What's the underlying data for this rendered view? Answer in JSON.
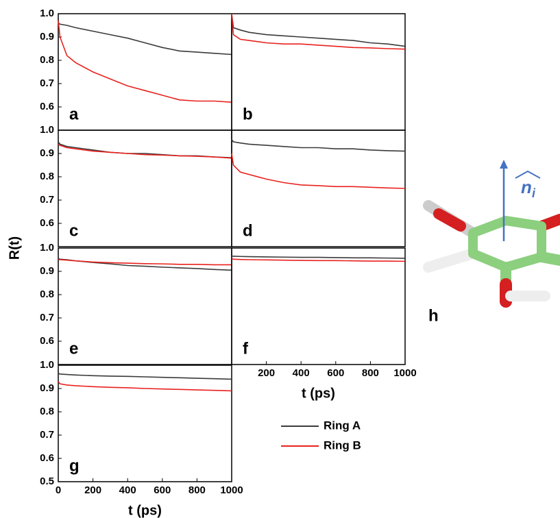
{
  "figure": {
    "ylabel": "R(t)"
  },
  "chart_data": [
    {
      "type": "line",
      "label": "a",
      "xlim": [
        0,
        1000
      ],
      "ylim": [
        0.5,
        1.0
      ],
      "yticks": [
        0.6,
        0.7,
        0.8,
        0.9,
        {
          "value": 1.0,
          "label": "1.0"
        }
      ],
      "x": [
        0,
        10,
        50,
        100,
        200,
        300,
        400,
        500,
        600,
        700,
        800,
        900,
        1000
      ],
      "series": [
        {
          "name": "Ring A",
          "color": "#3a3a3a",
          "values": [
            0.96,
            0.955,
            0.95,
            0.94,
            0.925,
            0.91,
            0.895,
            0.875,
            0.855,
            0.84,
            0.835,
            0.83,
            0.825
          ]
        },
        {
          "name": "Ring B",
          "color": "#e8211d",
          "values": [
            0.97,
            0.9,
            0.82,
            0.79,
            0.75,
            0.72,
            0.69,
            0.67,
            0.65,
            0.63,
            0.625,
            0.625,
            0.62
          ]
        }
      ]
    },
    {
      "type": "line",
      "label": "b",
      "xlim": [
        0,
        1000
      ],
      "ylim": [
        0.5,
        1.0
      ],
      "x": [
        0,
        10,
        50,
        100,
        200,
        300,
        400,
        500,
        600,
        700,
        800,
        900,
        1000
      ],
      "series": [
        {
          "name": "Ring A",
          "color": "#3a3a3a",
          "values": [
            1.0,
            0.94,
            0.93,
            0.92,
            0.91,
            0.905,
            0.9,
            0.895,
            0.89,
            0.885,
            0.875,
            0.87,
            0.86
          ]
        },
        {
          "name": "Ring B",
          "color": "#e8211d",
          "values": [
            1.0,
            0.91,
            0.89,
            0.885,
            0.875,
            0.87,
            0.87,
            0.865,
            0.86,
            0.855,
            0.853,
            0.85,
            0.848
          ]
        }
      ]
    },
    {
      "type": "line",
      "label": "c",
      "xlim": [
        0,
        1000
      ],
      "ylim": [
        0.5,
        1.0
      ],
      "yticks": [
        0.6,
        0.7,
        0.8,
        0.9,
        {
          "value": 1.0,
          "label": "1.0"
        }
      ],
      "x": [
        0,
        10,
        50,
        100,
        200,
        300,
        400,
        500,
        600,
        700,
        800,
        900,
        1000
      ],
      "series": [
        {
          "name": "Ring A",
          "color": "#3a3a3a",
          "values": [
            0.95,
            0.94,
            0.93,
            0.925,
            0.915,
            0.905,
            0.9,
            0.9,
            0.895,
            0.89,
            0.89,
            0.885,
            0.882
          ]
        },
        {
          "name": "Ring B",
          "color": "#e8211d",
          "values": [
            0.94,
            0.935,
            0.925,
            0.92,
            0.91,
            0.905,
            0.9,
            0.895,
            0.893,
            0.89,
            0.888,
            0.885,
            0.88
          ]
        }
      ]
    },
    {
      "type": "line",
      "label": "d",
      "xlim": [
        0,
        1000
      ],
      "ylim": [
        0.5,
        1.0
      ],
      "x": [
        0,
        10,
        50,
        100,
        200,
        300,
        400,
        500,
        600,
        700,
        800,
        900,
        1000
      ],
      "series": [
        {
          "name": "Ring A",
          "color": "#3a3a3a",
          "values": [
            0.96,
            0.95,
            0.945,
            0.94,
            0.935,
            0.93,
            0.925,
            0.925,
            0.92,
            0.92,
            0.915,
            0.912,
            0.91
          ]
        },
        {
          "name": "Ring B",
          "color": "#e8211d",
          "values": [
            0.9,
            0.85,
            0.82,
            0.81,
            0.79,
            0.775,
            0.765,
            0.762,
            0.758,
            0.758,
            0.755,
            0.752,
            0.75
          ]
        }
      ]
    },
    {
      "type": "line",
      "label": "e",
      "xlim": [
        0,
        1000
      ],
      "ylim": [
        0.5,
        1.0
      ],
      "yticks": [
        0.6,
        0.7,
        0.8,
        0.9,
        {
          "value": 1.0,
          "label": "1.0"
        }
      ],
      "x": [
        0,
        10,
        50,
        100,
        200,
        300,
        400,
        500,
        600,
        700,
        800,
        900,
        1000
      ],
      "series": [
        {
          "name": "Ring A",
          "color": "#3a3a3a",
          "values": [
            0.955,
            0.952,
            0.95,
            0.945,
            0.938,
            0.932,
            0.925,
            0.922,
            0.918,
            0.915,
            0.912,
            0.908,
            0.905
          ]
        },
        {
          "name": "Ring B",
          "color": "#e8211d",
          "values": [
            0.95,
            0.95,
            0.948,
            0.945,
            0.94,
            0.937,
            0.935,
            0.933,
            0.932,
            0.93,
            0.93,
            0.928,
            0.928
          ]
        }
      ]
    },
    {
      "type": "line",
      "label": "f",
      "xlabel": "t (ps)",
      "xlim": [
        0,
        1000
      ],
      "ylim": [
        0.5,
        1.0
      ],
      "xticks": [
        200,
        400,
        600,
        800,
        1000
      ],
      "x": [
        0,
        10,
        50,
        100,
        200,
        300,
        400,
        500,
        600,
        700,
        800,
        900,
        1000
      ],
      "series": [
        {
          "name": "Ring A",
          "color": "#3a3a3a",
          "values": [
            0.965,
            0.965,
            0.964,
            0.963,
            0.962,
            0.961,
            0.96,
            0.96,
            0.959,
            0.958,
            0.958,
            0.957,
            0.956
          ]
        },
        {
          "name": "Ring B",
          "color": "#e8211d",
          "values": [
            0.955,
            0.952,
            0.951,
            0.95,
            0.949,
            0.948,
            0.947,
            0.946,
            0.946,
            0.945,
            0.944,
            0.944,
            0.943
          ]
        }
      ]
    },
    {
      "type": "line",
      "label": "g",
      "xlabel": "t (ps)",
      "xlim": [
        0,
        1000
      ],
      "ylim": [
        0.5,
        1.0
      ],
      "xticks": [
        0,
        200,
        400,
        600,
        800,
        1000
      ],
      "yticks": [
        0.5,
        0.6,
        0.7,
        0.8,
        0.9,
        {
          "value": 1.0,
          "label": "1.0"
        }
      ],
      "x": [
        0,
        10,
        50,
        100,
        200,
        300,
        400,
        500,
        600,
        700,
        800,
        900,
        1000
      ],
      "series": [
        {
          "name": "Ring A",
          "color": "#3a3a3a",
          "values": [
            0.965,
            0.962,
            0.96,
            0.958,
            0.955,
            0.953,
            0.952,
            0.95,
            0.948,
            0.946,
            0.944,
            0.942,
            0.94
          ]
        },
        {
          "name": "Ring B",
          "color": "#e8211d",
          "values": [
            0.93,
            0.92,
            0.915,
            0.912,
            0.908,
            0.905,
            0.903,
            0.9,
            0.898,
            0.896,
            0.894,
            0.892,
            0.89
          ]
        }
      ]
    }
  ],
  "molecule": {
    "label": "h",
    "vector_label": "n",
    "vector_subscript": "i"
  }
}
